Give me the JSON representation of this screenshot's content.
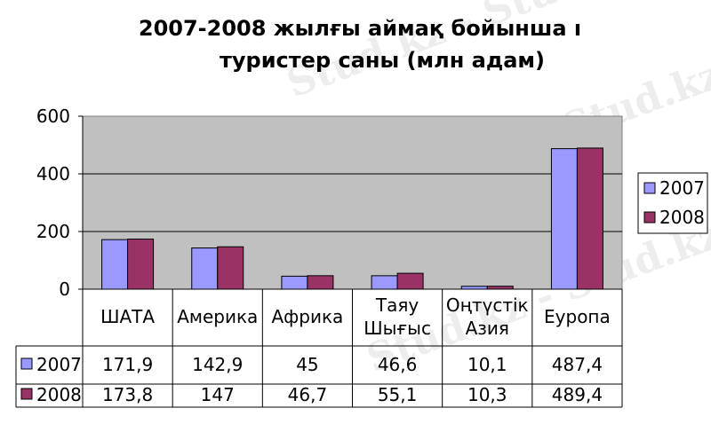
{
  "chart_data": {
    "type": "bar",
    "title_lines": [
      "2007-2008 жылғы аймақ бойынша ı",
      "туристер саны (млн адам)"
    ],
    "categories": [
      [
        "ШАТА"
      ],
      [
        "Америка"
      ],
      [
        "Африка"
      ],
      [
        "Таяу",
        "Шығыс"
      ],
      [
        "Оңтүстік",
        "Азия"
      ],
      [
        "Еуропа"
      ]
    ],
    "series": [
      {
        "name": "2007",
        "values": [
          171.9,
          142.9,
          45,
          46.6,
          10.1,
          487.4
        ],
        "labels": [
          "171,9",
          "142,9",
          "45",
          "46,6",
          "10,1",
          "487,4"
        ],
        "color": "#9999ff"
      },
      {
        "name": "2008",
        "values": [
          173.8,
          147,
          46.7,
          55.1,
          10.3,
          489.4
        ],
        "labels": [
          "173,8",
          "147",
          "46,7",
          "55,1",
          "10,3",
          "489,4"
        ],
        "color": "#993366"
      }
    ],
    "yticks": [
      "0",
      "200",
      "400",
      "600"
    ],
    "ylim": [
      0,
      600
    ],
    "grid": true,
    "plot_background": "#c0c0c0",
    "legend_position": "right",
    "data_table": true
  },
  "watermark": "Stud.kz"
}
